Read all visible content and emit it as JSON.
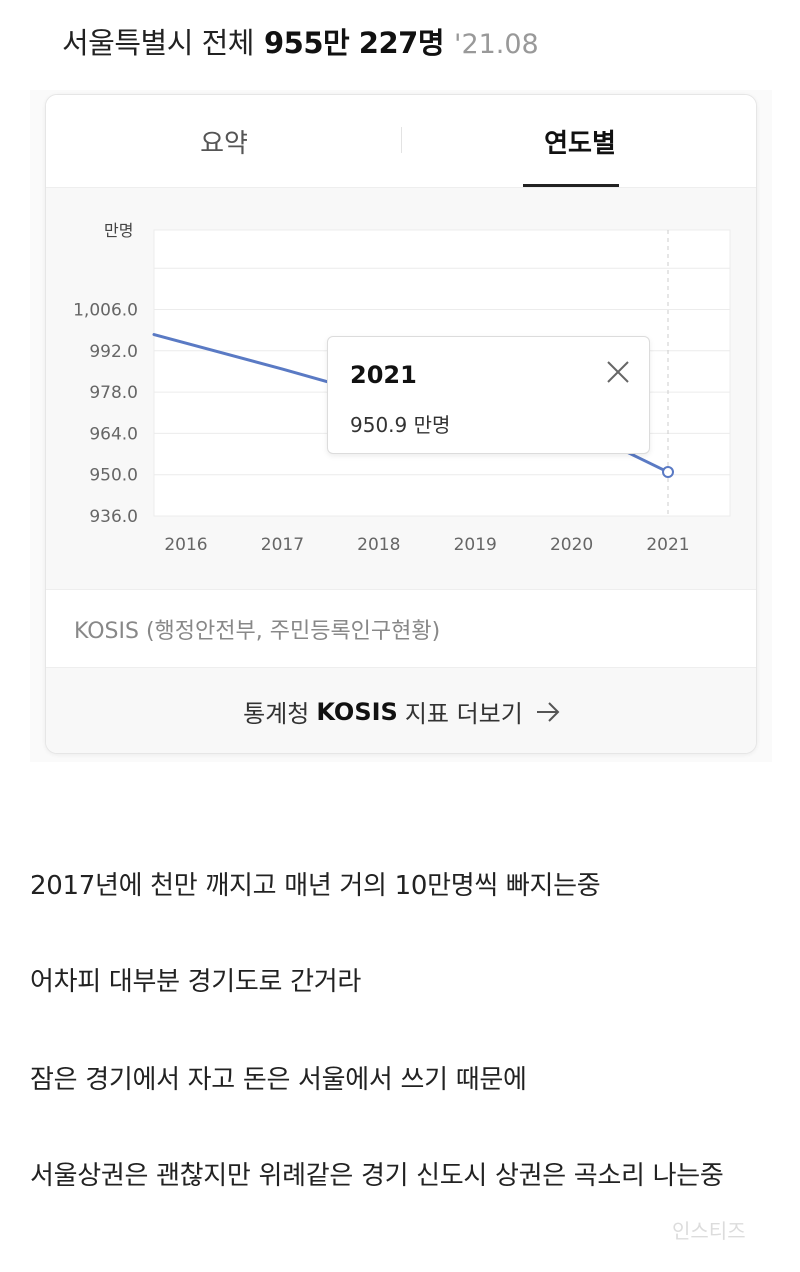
{
  "header": {
    "region": "서울특별시 전체",
    "population": "955만 227명",
    "date": "'21.08"
  },
  "tabs": [
    {
      "label": "요약",
      "active": false
    },
    {
      "label": "연도별",
      "active": true
    }
  ],
  "chart_data": {
    "type": "line",
    "ylabel": "만명",
    "x": [
      "2016",
      "2017",
      "2018",
      "2019",
      "2020",
      "2021"
    ],
    "series": [
      {
        "values": [
          997.5,
          985.8,
          976.6,
          972.5,
          966.8,
          950.9
        ]
      }
    ],
    "yticks": [
      "1,006.0",
      "992.0",
      "978.0",
      "964.0",
      "950.0",
      "936.0"
    ],
    "ylim": [
      936.0,
      1006.0
    ],
    "grid": true,
    "line_color": "#5a7ac4",
    "highlight": {
      "x": "2021"
    }
  },
  "tooltip": {
    "year": "2021",
    "value": "950.9 만명",
    "close_icon": "close-icon"
  },
  "source": "KOSIS (행정안전부, 주민등록인구현황)",
  "more_link": {
    "prefix": "통계청",
    "brand": "KOSIS",
    "suffix": "지표 더보기",
    "icon": "arrow-right-icon"
  },
  "comments": [
    "2017년에 천만 깨지고 매년 거의 10만명씩 빠지는중",
    "어차피 대부분 경기도로 간거라",
    "잠은 경기에서 자고 돈은 서울에서 쓰기 때문에",
    "서울상권은 괜찮지만 위례같은 경기 신도시 상권은 곡소리 나는중"
  ],
  "watermark": "인스티즈"
}
